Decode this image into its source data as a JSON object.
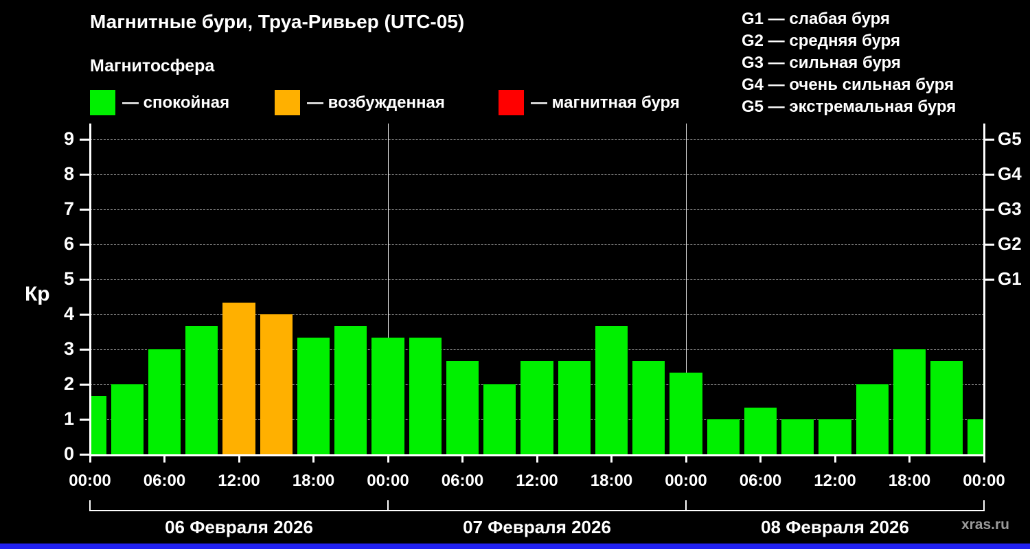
{
  "title": "Магнитные бури, Труа-Ривьер (UTC-05)",
  "legend": {
    "heading": "Магнитосфера",
    "items": [
      {
        "label": "— спокойная",
        "color": "#00f000"
      },
      {
        "label": "— возбужденная",
        "color": "#ffb000"
      },
      {
        "label": "— магнитная буря",
        "color": "#ff0000"
      }
    ]
  },
  "storm_scale": [
    "G1 — слабая буря",
    "G2 — средняя буря",
    "G3 — сильная буря",
    "G4 — очень сильная буря",
    "G5 — экстремальная буря"
  ],
  "watermark": "xras.ru",
  "chart_data": {
    "type": "bar",
    "title": "Магнитные бури, Труа-Ривьер (UTC-05)",
    "ylabel": "Кр",
    "ylim": [
      0,
      9.4
    ],
    "yticks": [
      0,
      1,
      2,
      3,
      4,
      5,
      6,
      7,
      8,
      9
    ],
    "right_ticks": [
      {
        "label": "G1",
        "value": 5
      },
      {
        "label": "G2",
        "value": 6
      },
      {
        "label": "G3",
        "value": 7
      },
      {
        "label": "G4",
        "value": 8
      },
      {
        "label": "G5",
        "value": 9
      }
    ],
    "grid": "dashed-horizontal",
    "hours_span": 72,
    "bar_interval_hours": 3,
    "xticks": [
      {
        "hour": 0,
        "label": "00:00"
      },
      {
        "hour": 6,
        "label": "06:00"
      },
      {
        "hour": 12,
        "label": "12:00"
      },
      {
        "hour": 18,
        "label": "18:00"
      },
      {
        "hour": 24,
        "label": "00:00"
      },
      {
        "hour": 30,
        "label": "06:00"
      },
      {
        "hour": 36,
        "label": "12:00"
      },
      {
        "hour": 42,
        "label": "18:00"
      },
      {
        "hour": 48,
        "label": "00:00"
      },
      {
        "hour": 54,
        "label": "06:00"
      },
      {
        "hour": 60,
        "label": "12:00"
      },
      {
        "hour": 66,
        "label": "18:00"
      },
      {
        "hour": 72,
        "label": "00:00"
      }
    ],
    "day_sections": [
      {
        "label": "06 Февраля 2026",
        "start_hour": 0,
        "end_hour": 24
      },
      {
        "label": "07 Февраля 2026",
        "start_hour": 24,
        "end_hour": 48
      },
      {
        "label": "08 Февраля 2026",
        "start_hour": 48,
        "end_hour": 72
      }
    ],
    "bars": [
      {
        "hour": 0,
        "kp": 1.67
      },
      {
        "hour": 3,
        "kp": 2.0
      },
      {
        "hour": 6,
        "kp": 3.0
      },
      {
        "hour": 9,
        "kp": 3.67
      },
      {
        "hour": 12,
        "kp": 4.33
      },
      {
        "hour": 15,
        "kp": 4.0
      },
      {
        "hour": 18,
        "kp": 3.33
      },
      {
        "hour": 21,
        "kp": 3.67
      },
      {
        "hour": 24,
        "kp": 3.33
      },
      {
        "hour": 27,
        "kp": 3.33
      },
      {
        "hour": 30,
        "kp": 2.67
      },
      {
        "hour": 33,
        "kp": 2.0
      },
      {
        "hour": 36,
        "kp": 2.67
      },
      {
        "hour": 39,
        "kp": 2.67
      },
      {
        "hour": 42,
        "kp": 3.67
      },
      {
        "hour": 45,
        "kp": 2.67
      },
      {
        "hour": 48,
        "kp": 2.33
      },
      {
        "hour": 51,
        "kp": 1.0
      },
      {
        "hour": 54,
        "kp": 1.33
      },
      {
        "hour": 57,
        "kp": 1.0
      },
      {
        "hour": 60,
        "kp": 1.0
      },
      {
        "hour": 63,
        "kp": 2.0
      },
      {
        "hour": 66,
        "kp": 3.0
      },
      {
        "hour": 69,
        "kp": 2.67
      },
      {
        "hour": 72,
        "kp": 1.0
      }
    ],
    "thresholds": {
      "excited_min": 4,
      "storm_min": 5
    },
    "colors": {
      "quiet": "#00f000",
      "excited": "#ffb000",
      "storm": "#ff0000"
    }
  }
}
